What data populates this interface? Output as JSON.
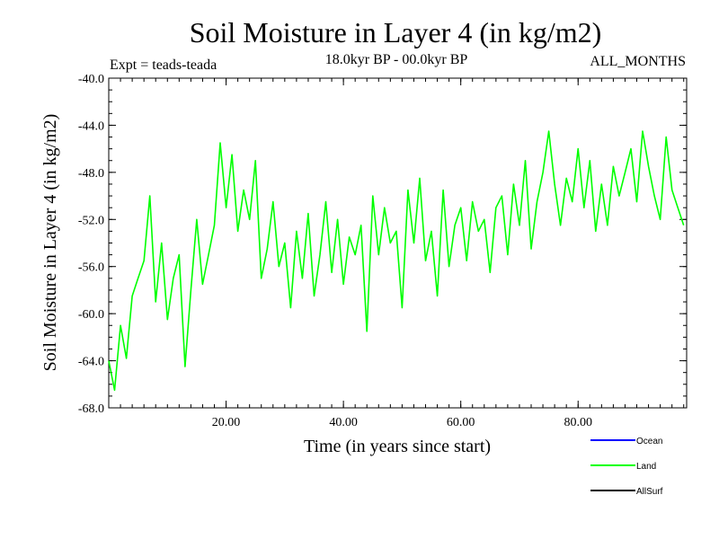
{
  "chart_data": {
    "type": "line",
    "title": "Soil Moisture in Layer 4 (in kg/m2)",
    "subtitle": "18.0kyr BP - 00.0kyr BP",
    "expt_label": "Expt = teads-teada",
    "months_label": "ALL_MONTHS",
    "xlabel": "Time (in years since start)",
    "ylabel": "Soil Moisture in Layer 4 (in kg/m2)",
    "xlim": [
      0,
      98.5
    ],
    "ylim": [
      -68.0,
      -40.0
    ],
    "x_ticks": [
      20,
      40,
      60,
      80
    ],
    "x_tick_labels": [
      "20.00",
      "40.00",
      "60.00",
      "80.00"
    ],
    "y_ticks": [
      -40,
      -44,
      -48,
      -52,
      -56,
      -60,
      -64,
      -68
    ],
    "y_tick_labels": [
      "-40.0",
      "-44.0",
      "-48.0",
      "-52.0",
      "-56.0",
      "-60.0",
      "-64.0",
      "-68.0"
    ],
    "grid": false,
    "legend_position": "bottom-right",
    "series": [
      {
        "name": "Land",
        "color": "#00ff00",
        "x": [
          0,
          1,
          2,
          3,
          4,
          5,
          6,
          7,
          8,
          9,
          10,
          11,
          12,
          13,
          14,
          15,
          16,
          17,
          18,
          19,
          20,
          21,
          22,
          23,
          24,
          25,
          26,
          27,
          28,
          29,
          30,
          31,
          32,
          33,
          34,
          35,
          36,
          37,
          38,
          39,
          40,
          41,
          42,
          43,
          44,
          45,
          46,
          47,
          48,
          49,
          50,
          51,
          52,
          53,
          54,
          55,
          56,
          57,
          58,
          59,
          60,
          61,
          62,
          63,
          64,
          65,
          66,
          67,
          68,
          69,
          70,
          71,
          72,
          73,
          74,
          75,
          76,
          77,
          78,
          79,
          80,
          81,
          82,
          83,
          84,
          85,
          86,
          87,
          88,
          89,
          90,
          91,
          92,
          93,
          94,
          95,
          96,
          97,
          98
        ],
        "values": [
          -64.0,
          -66.5,
          -61.0,
          -63.8,
          -58.5,
          -57.0,
          -55.5,
          -50.0,
          -59.0,
          -54.0,
          -60.5,
          -57.0,
          -55.0,
          -64.5,
          -58.0,
          -52.0,
          -57.5,
          -55.0,
          -52.5,
          -45.5,
          -51.0,
          -46.5,
          -53.0,
          -49.5,
          -52.0,
          -47.0,
          -57.0,
          -54.5,
          -50.5,
          -56.0,
          -54.0,
          -59.5,
          -53.0,
          -57.0,
          -51.5,
          -58.5,
          -55.0,
          -50.5,
          -56.5,
          -52.0,
          -57.5,
          -53.5,
          -55.0,
          -52.5,
          -61.5,
          -50.0,
          -55.0,
          -51.0,
          -54.0,
          -53.0,
          -59.5,
          -49.5,
          -54.0,
          -48.5,
          -55.5,
          -53.0,
          -58.5,
          -49.5,
          -56.0,
          -52.5,
          -51.0,
          -55.5,
          -50.5,
          -53.0,
          -52.0,
          -56.5,
          -51.0,
          -50.0,
          -55.0,
          -49.0,
          -52.5,
          -47.0,
          -54.5,
          -50.5,
          -48.0,
          -44.5,
          -49.0,
          -52.5,
          -48.5,
          -50.5,
          -46.0,
          -51.0,
          -47.0,
          -53.0,
          -49.0,
          -52.5,
          -47.5,
          -50.0,
          -48.0,
          -46.0,
          -50.5,
          -44.5,
          -47.5,
          -50.0,
          -52.0,
          -45.0,
          -49.5,
          -51.0,
          -52.5
        ]
      },
      {
        "name": "Ocean",
        "color": "#0000ff",
        "x": [],
        "values": []
      },
      {
        "name": "AllSurf",
        "color": "#000000",
        "x": [],
        "values": []
      }
    ]
  }
}
